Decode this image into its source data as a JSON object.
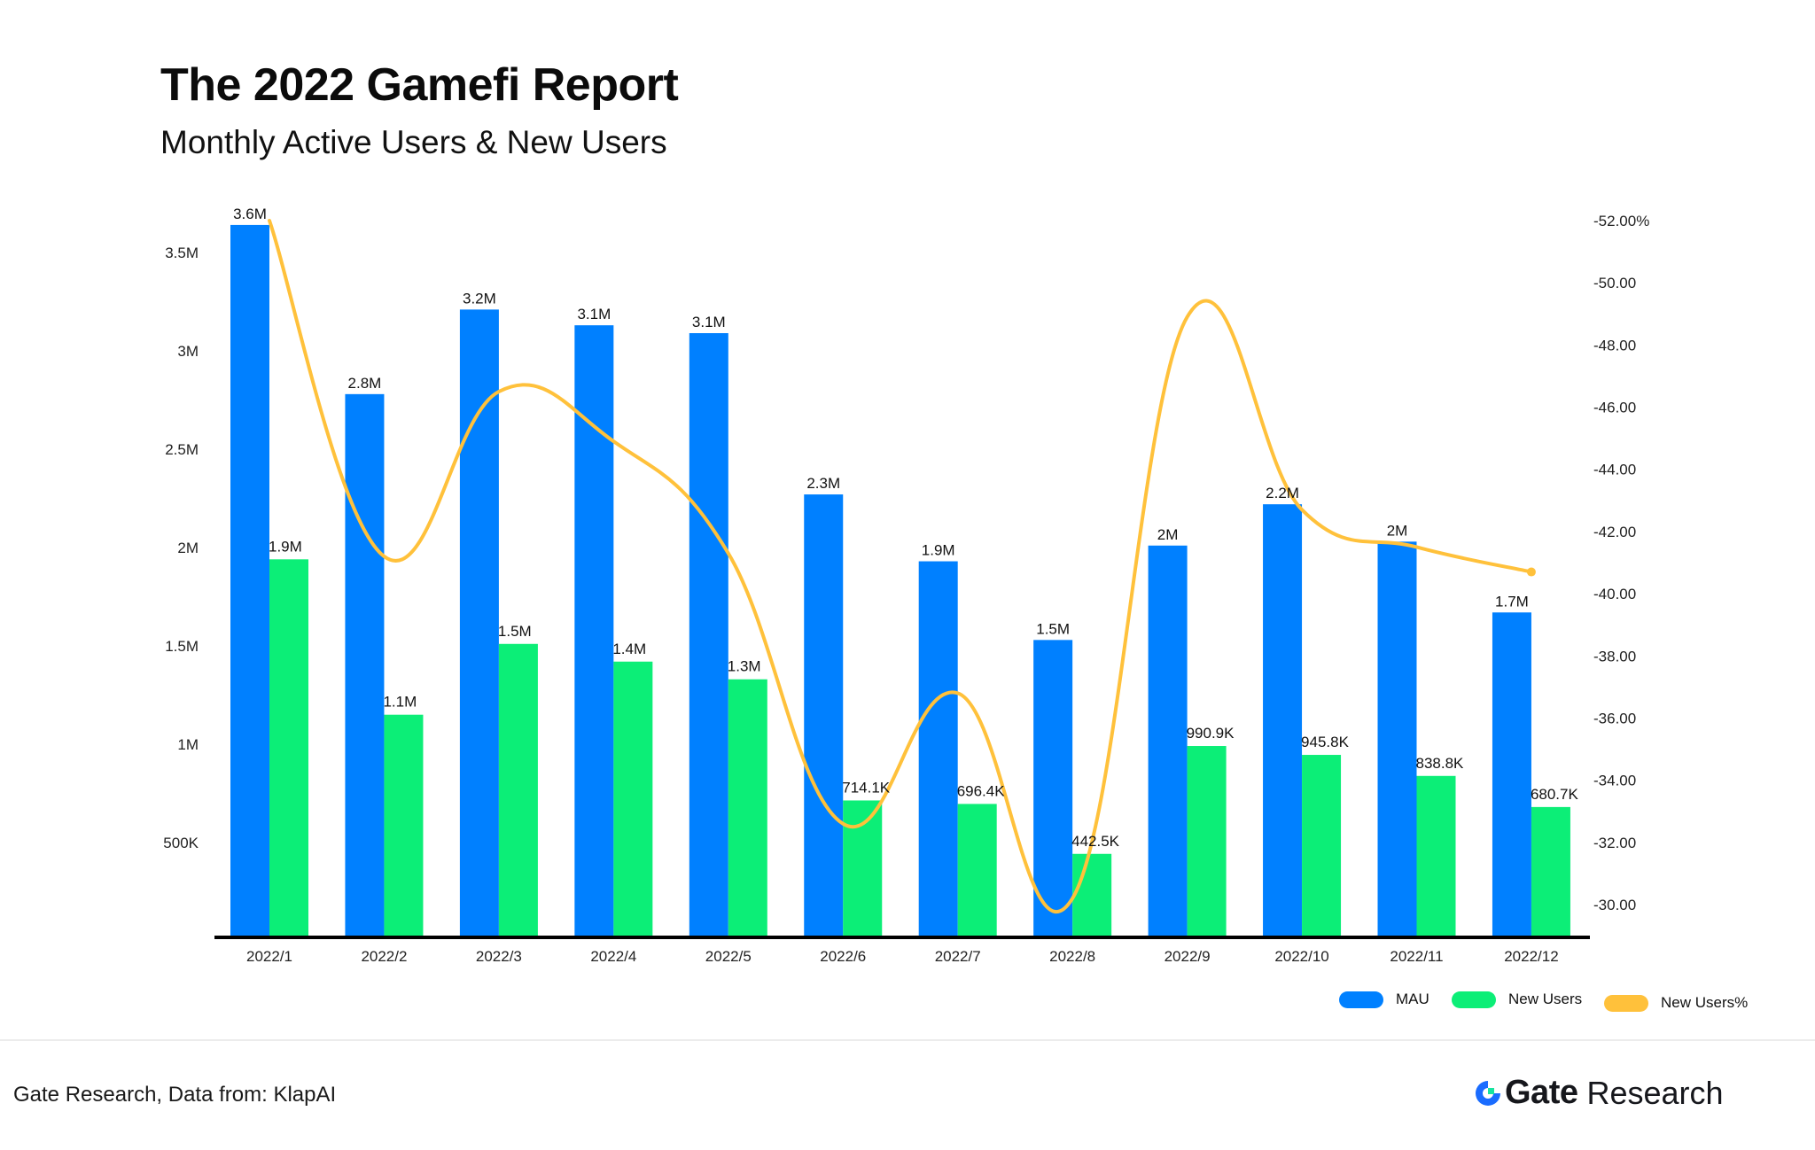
{
  "header": {
    "title": "The 2022 Gamefi Report",
    "subtitle": "Monthly Active Users & New Users"
  },
  "footer": {
    "source": "Gate Research, Data from: KlapAI",
    "brand_primary": "Gate",
    "brand_secondary": "Research",
    "logo_icon": "gate-logo-icon"
  },
  "colors": {
    "mau": "#0080FF",
    "new_users": "#0CEE77",
    "new_users_pct": "#FFC13B",
    "axis": "#000000"
  },
  "chart_data": {
    "type": "bar",
    "title": "The 2022 Gamefi Report",
    "subtitle": "Monthly Active Users & New Users",
    "categories": [
      "2022/1",
      "2022/2",
      "2022/3",
      "2022/4",
      "2022/5",
      "2022/6",
      "2022/7",
      "2022/8",
      "2022/9",
      "2022/10",
      "2022/11",
      "2022/12"
    ],
    "series": [
      {
        "name": "MAU",
        "type": "bar",
        "axis": "left",
        "values": [
          3640000,
          2780000,
          3210000,
          3130000,
          3090000,
          2270000,
          1930000,
          1530000,
          2010000,
          2220000,
          2030000,
          1670000
        ],
        "labels": [
          "3.6M",
          "2.8M",
          "3.2M",
          "3.1M",
          "3.1M",
          "2.3M",
          "1.9M",
          "1.5M",
          "2M",
          "2.2M",
          "2M",
          "1.7M"
        ]
      },
      {
        "name": "New Users",
        "type": "bar",
        "axis": "left",
        "values": [
          1940000,
          1150000,
          1510000,
          1420000,
          1330000,
          714100,
          696400,
          442500,
          990900,
          945800,
          838800,
          680700
        ],
        "labels": [
          "1.9M",
          "1.1M",
          "1.5M",
          "1.4M",
          "1.3M",
          "714.1K",
          "696.4K",
          "442.5K",
          "990.9K",
          "945.8K",
          "838.8K",
          "680.7K"
        ]
      },
      {
        "name": "New Users%",
        "type": "line",
        "axis": "right",
        "smooth": true,
        "values": [
          -52.0,
          -41.2,
          -46.5,
          -44.9,
          -41.3,
          -32.6,
          -36.8,
          -30.2,
          -48.9,
          -42.7,
          -41.5,
          -40.7
        ]
      }
    ],
    "left_axis": {
      "ticks": [
        500000,
        1000000,
        1500000,
        2000000,
        2500000,
        3000000,
        3500000
      ],
      "tick_labels": [
        "500K",
        "1M",
        "1.5M",
        "2M",
        "2.5M",
        "3M",
        "3.5M"
      ],
      "ylim": [
        0,
        3700000
      ]
    },
    "right_axis": {
      "ticks": [
        -52,
        -50,
        -48,
        -46,
        -44,
        -42,
        -40,
        -38,
        -36,
        -34,
        -32,
        -30
      ],
      "tick_labels": [
        "-52.00%",
        "-50.00",
        "-48.00",
        "-46.00",
        "-44.00",
        "-42.00",
        "-40.00",
        "-38.00",
        "-36.00",
        "-34.00",
        "-32.00",
        "-30.00"
      ],
      "ylim": [
        -29,
        -52.3
      ],
      "inverted": true
    },
    "xlabel": "",
    "ylabel": "",
    "grid": false,
    "legend": {
      "position": "bottom-right",
      "entries": [
        "MAU",
        "New Users",
        "New Users%"
      ]
    }
  }
}
